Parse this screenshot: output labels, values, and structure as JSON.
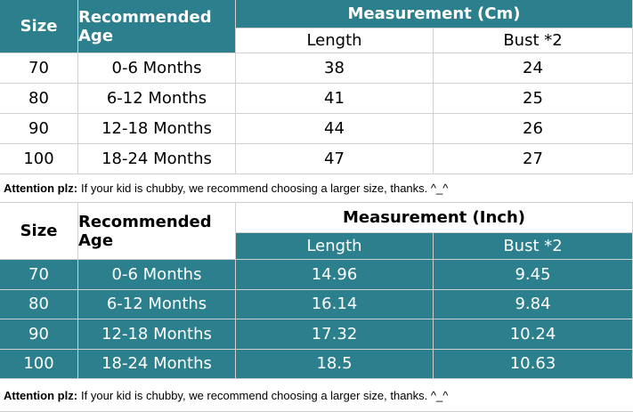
{
  "tables": [
    {
      "header": {
        "size": "Size",
        "age": "Recommended Age",
        "measurement": "Measurement (Cm)",
        "columns": [
          "Length",
          "Bust *2"
        ]
      },
      "rows": [
        [
          70,
          "0-6 Months",
          38,
          24
        ],
        [
          80,
          "6-12 Months",
          41,
          25
        ],
        [
          90,
          "12-18 Months",
          44,
          26
        ],
        [
          100,
          "18-24 Months",
          47,
          27
        ]
      ],
      "note": {
        "label": "Attention plz:",
        "text": "If your kid is chubby, we recommend choosing a larger size, thanks. ^_^"
      }
    },
    {
      "header": {
        "size": "Size",
        "age": "Recommended Age",
        "measurement": "Measurement (Inch)",
        "columns": [
          "Length",
          "Bust *2"
        ]
      },
      "rows": [
        [
          70,
          "0-6 Months",
          14.96,
          9.45
        ],
        [
          80,
          "6-12 Months",
          16.14,
          9.84
        ],
        [
          90,
          "12-18 Months",
          17.32,
          10.24
        ],
        [
          100,
          "18-24 Months",
          18.5,
          10.63
        ]
      ],
      "note": {
        "label": "Attention plz:",
        "text": "If your kid is chubby, we recommend choosing a larger size, thanks. ^_^"
      }
    }
  ]
}
